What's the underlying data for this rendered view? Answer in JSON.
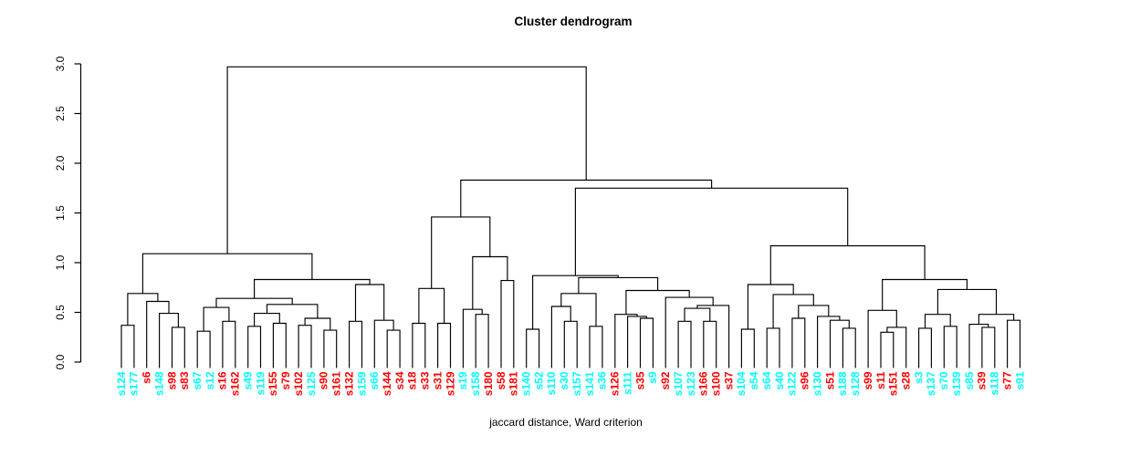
{
  "title": "Cluster dendrogram",
  "caption": "jaccard distance, Ward criterion",
  "colors": {
    "cyan": "#00FFFF",
    "red": "#FF0000",
    "line": "#000000"
  },
  "chart_data": {
    "type": "dendrogram",
    "title": "Cluster dendrogram",
    "xlabel": "jaccard distance, Ward criterion",
    "ylabel": "",
    "ylim": [
      0.0,
      3.0
    ],
    "y_axis": {
      "ticks": [
        {
          "label": "0.0",
          "value": 0.0
        },
        {
          "label": "0.5",
          "value": 0.5
        },
        {
          "label": "1.0",
          "value": 1.0
        },
        {
          "label": "1.5",
          "value": 1.5
        },
        {
          "label": "2.0",
          "value": 2.0
        },
        {
          "label": "2.5",
          "value": 2.5
        },
        {
          "label": "3.0",
          "value": 3.0
        }
      ]
    },
    "leaves": [
      {
        "label": "s124",
        "color": "cyan"
      },
      {
        "label": "s177",
        "color": "cyan"
      },
      {
        "label": "s6",
        "color": "red"
      },
      {
        "label": "s148",
        "color": "cyan"
      },
      {
        "label": "s98",
        "color": "red"
      },
      {
        "label": "s83",
        "color": "red"
      },
      {
        "label": "s67",
        "color": "cyan"
      },
      {
        "label": "s12",
        "color": "cyan"
      },
      {
        "label": "s16",
        "color": "red"
      },
      {
        "label": "s162",
        "color": "red"
      },
      {
        "label": "s49",
        "color": "cyan"
      },
      {
        "label": "s119",
        "color": "cyan"
      },
      {
        "label": "s155",
        "color": "red"
      },
      {
        "label": "s79",
        "color": "red"
      },
      {
        "label": "s102",
        "color": "red"
      },
      {
        "label": "s125",
        "color": "cyan"
      },
      {
        "label": "s90",
        "color": "red"
      },
      {
        "label": "s161",
        "color": "red"
      },
      {
        "label": "s132",
        "color": "red"
      },
      {
        "label": "s159",
        "color": "cyan"
      },
      {
        "label": "s66",
        "color": "cyan"
      },
      {
        "label": "s144",
        "color": "red"
      },
      {
        "label": "s34",
        "color": "red"
      },
      {
        "label": "s18",
        "color": "red"
      },
      {
        "label": "s33",
        "color": "red"
      },
      {
        "label": "s31",
        "color": "red"
      },
      {
        "label": "s129",
        "color": "red"
      },
      {
        "label": "s19",
        "color": "cyan"
      },
      {
        "label": "s158",
        "color": "cyan"
      },
      {
        "label": "s180",
        "color": "red"
      },
      {
        "label": "s58",
        "color": "red"
      },
      {
        "label": "s181",
        "color": "red"
      },
      {
        "label": "s140",
        "color": "cyan"
      },
      {
        "label": "s52",
        "color": "cyan"
      },
      {
        "label": "s110",
        "color": "cyan"
      },
      {
        "label": "s30",
        "color": "cyan"
      },
      {
        "label": "s157",
        "color": "cyan"
      },
      {
        "label": "s141",
        "color": "cyan"
      },
      {
        "label": "s36",
        "color": "cyan"
      },
      {
        "label": "s126",
        "color": "red"
      },
      {
        "label": "s111",
        "color": "cyan"
      },
      {
        "label": "s35",
        "color": "red"
      },
      {
        "label": "s9",
        "color": "cyan"
      },
      {
        "label": "s92",
        "color": "red"
      },
      {
        "label": "s107",
        "color": "cyan"
      },
      {
        "label": "s123",
        "color": "cyan"
      },
      {
        "label": "s166",
        "color": "red"
      },
      {
        "label": "s100",
        "color": "red"
      },
      {
        "label": "s37",
        "color": "red"
      },
      {
        "label": "s104",
        "color": "cyan"
      },
      {
        "label": "s54",
        "color": "cyan"
      },
      {
        "label": "s64",
        "color": "cyan"
      },
      {
        "label": "s40",
        "color": "cyan"
      },
      {
        "label": "s122",
        "color": "cyan"
      },
      {
        "label": "s96",
        "color": "red"
      },
      {
        "label": "s130",
        "color": "cyan"
      },
      {
        "label": "s51",
        "color": "red"
      },
      {
        "label": "s188",
        "color": "cyan"
      },
      {
        "label": "s128",
        "color": "cyan"
      },
      {
        "label": "s99",
        "color": "red"
      },
      {
        "label": "s11",
        "color": "red"
      },
      {
        "label": "s151",
        "color": "red"
      },
      {
        "label": "s28",
        "color": "red"
      },
      {
        "label": "s3",
        "color": "cyan"
      },
      {
        "label": "s137",
        "color": "cyan"
      },
      {
        "label": "s70",
        "color": "cyan"
      },
      {
        "label": "s139",
        "color": "cyan"
      },
      {
        "label": "s85",
        "color": "cyan"
      },
      {
        "label": "s39",
        "color": "red"
      },
      {
        "label": "s118",
        "color": "cyan"
      },
      {
        "label": "s77",
        "color": "red"
      },
      {
        "label": "s91",
        "color": "cyan"
      }
    ],
    "tree": [
      2.97,
      [
        1.09,
        [
          0.69,
          [
            0.37,
            "s124",
            "s177"
          ],
          [
            0.61,
            "s6",
            [
              0.49,
              "s148",
              [
                0.35,
                "s98",
                "s83"
              ]
            ]
          ]
        ],
        [
          0.83,
          [
            0.64,
            [
              0.55,
              [
                0.31,
                "s67",
                "s12"
              ],
              [
                0.41,
                "s16",
                "s162"
              ]
            ],
            [
              0.58,
              [
                0.49,
                [
                  0.36,
                  "s49",
                  "s119"
                ],
                [
                  0.39,
                  "s155",
                  "s79"
                ]
              ],
              [
                0.44,
                [
                  0.37,
                  "s102",
                  "s125"
                ],
                [
                  0.32,
                  "s90",
                  "s161"
                ]
              ]
            ]
          ],
          [
            0.78,
            [
              0.41,
              "s132",
              "s159"
            ],
            [
              0.42,
              "s66",
              [
                0.32,
                "s144",
                "s34"
              ]
            ]
          ]
        ]
      ],
      [
        1.83,
        [
          1.46,
          [
            0.74,
            [
              0.39,
              "s18",
              "s33"
            ],
            [
              0.39,
              "s31",
              "s129"
            ]
          ],
          [
            1.06,
            [
              0.53,
              "s19",
              [
                0.48,
                "s158",
                "s180"
              ]
            ],
            [
              0.82,
              "s58",
              "s181"
            ]
          ]
        ],
        [
          1.75,
          [
            0.87,
            [
              0.33,
              "s140",
              "s52"
            ],
            [
              0.85,
              [
                0.69,
                [
                  0.56,
                  "s110",
                  [
                    0.41,
                    "s30",
                    "s157"
                  ]
                ],
                [
                  0.36,
                  "s141",
                  "s36"
                ]
              ],
              [
                0.72,
                [
                  0.48,
                  "s126",
                  [
                    0.46,
                    "s111",
                    [
                      0.44,
                      "s35",
                      "s9"
                    ]
                  ]
                ],
                [
                  0.65,
                  "s92",
                  [
                    0.57,
                    [
                      0.54,
                      [
                        0.41,
                        "s107",
                        "s123"
                      ],
                      [
                        0.41,
                        "s166",
                        "s100"
                      ]
                    ],
                    "s37"
                  ]
                ]
              ]
            ]
          ],
          [
            1.17,
            [
              0.78,
              [
                0.33,
                "s104",
                "s54"
              ],
              [
                0.68,
                [
                  0.34,
                  "s64",
                  "s40"
                ],
                [
                  0.57,
                  [
                    0.44,
                    "s122",
                    "s96"
                  ],
                  [
                    0.46,
                    "s130",
                    [
                      0.42,
                      "s51",
                      [
                        0.34,
                        "s188",
                        "s128"
                      ]
                    ]
                  ]
                ]
              ]
            ],
            [
              0.83,
              [
                0.52,
                "s99",
                [
                  0.35,
                  [
                    0.3,
                    "s11",
                    "s151"
                  ],
                  "s28"
                ]
              ],
              [
                0.73,
                [
                  0.48,
                  [
                    0.34,
                    "s3",
                    "s137"
                  ],
                  [
                    0.36,
                    "s70",
                    "s139"
                  ]
                ],
                [
                  0.48,
                  [
                    0.38,
                    "s85",
                    [
                      0.35,
                      "s39",
                      "s118"
                    ]
                  ],
                  [
                    0.42,
                    "s77",
                    "s91"
                  ]
                ]
              ]
            ]
          ]
        ]
      ]
    ]
  }
}
